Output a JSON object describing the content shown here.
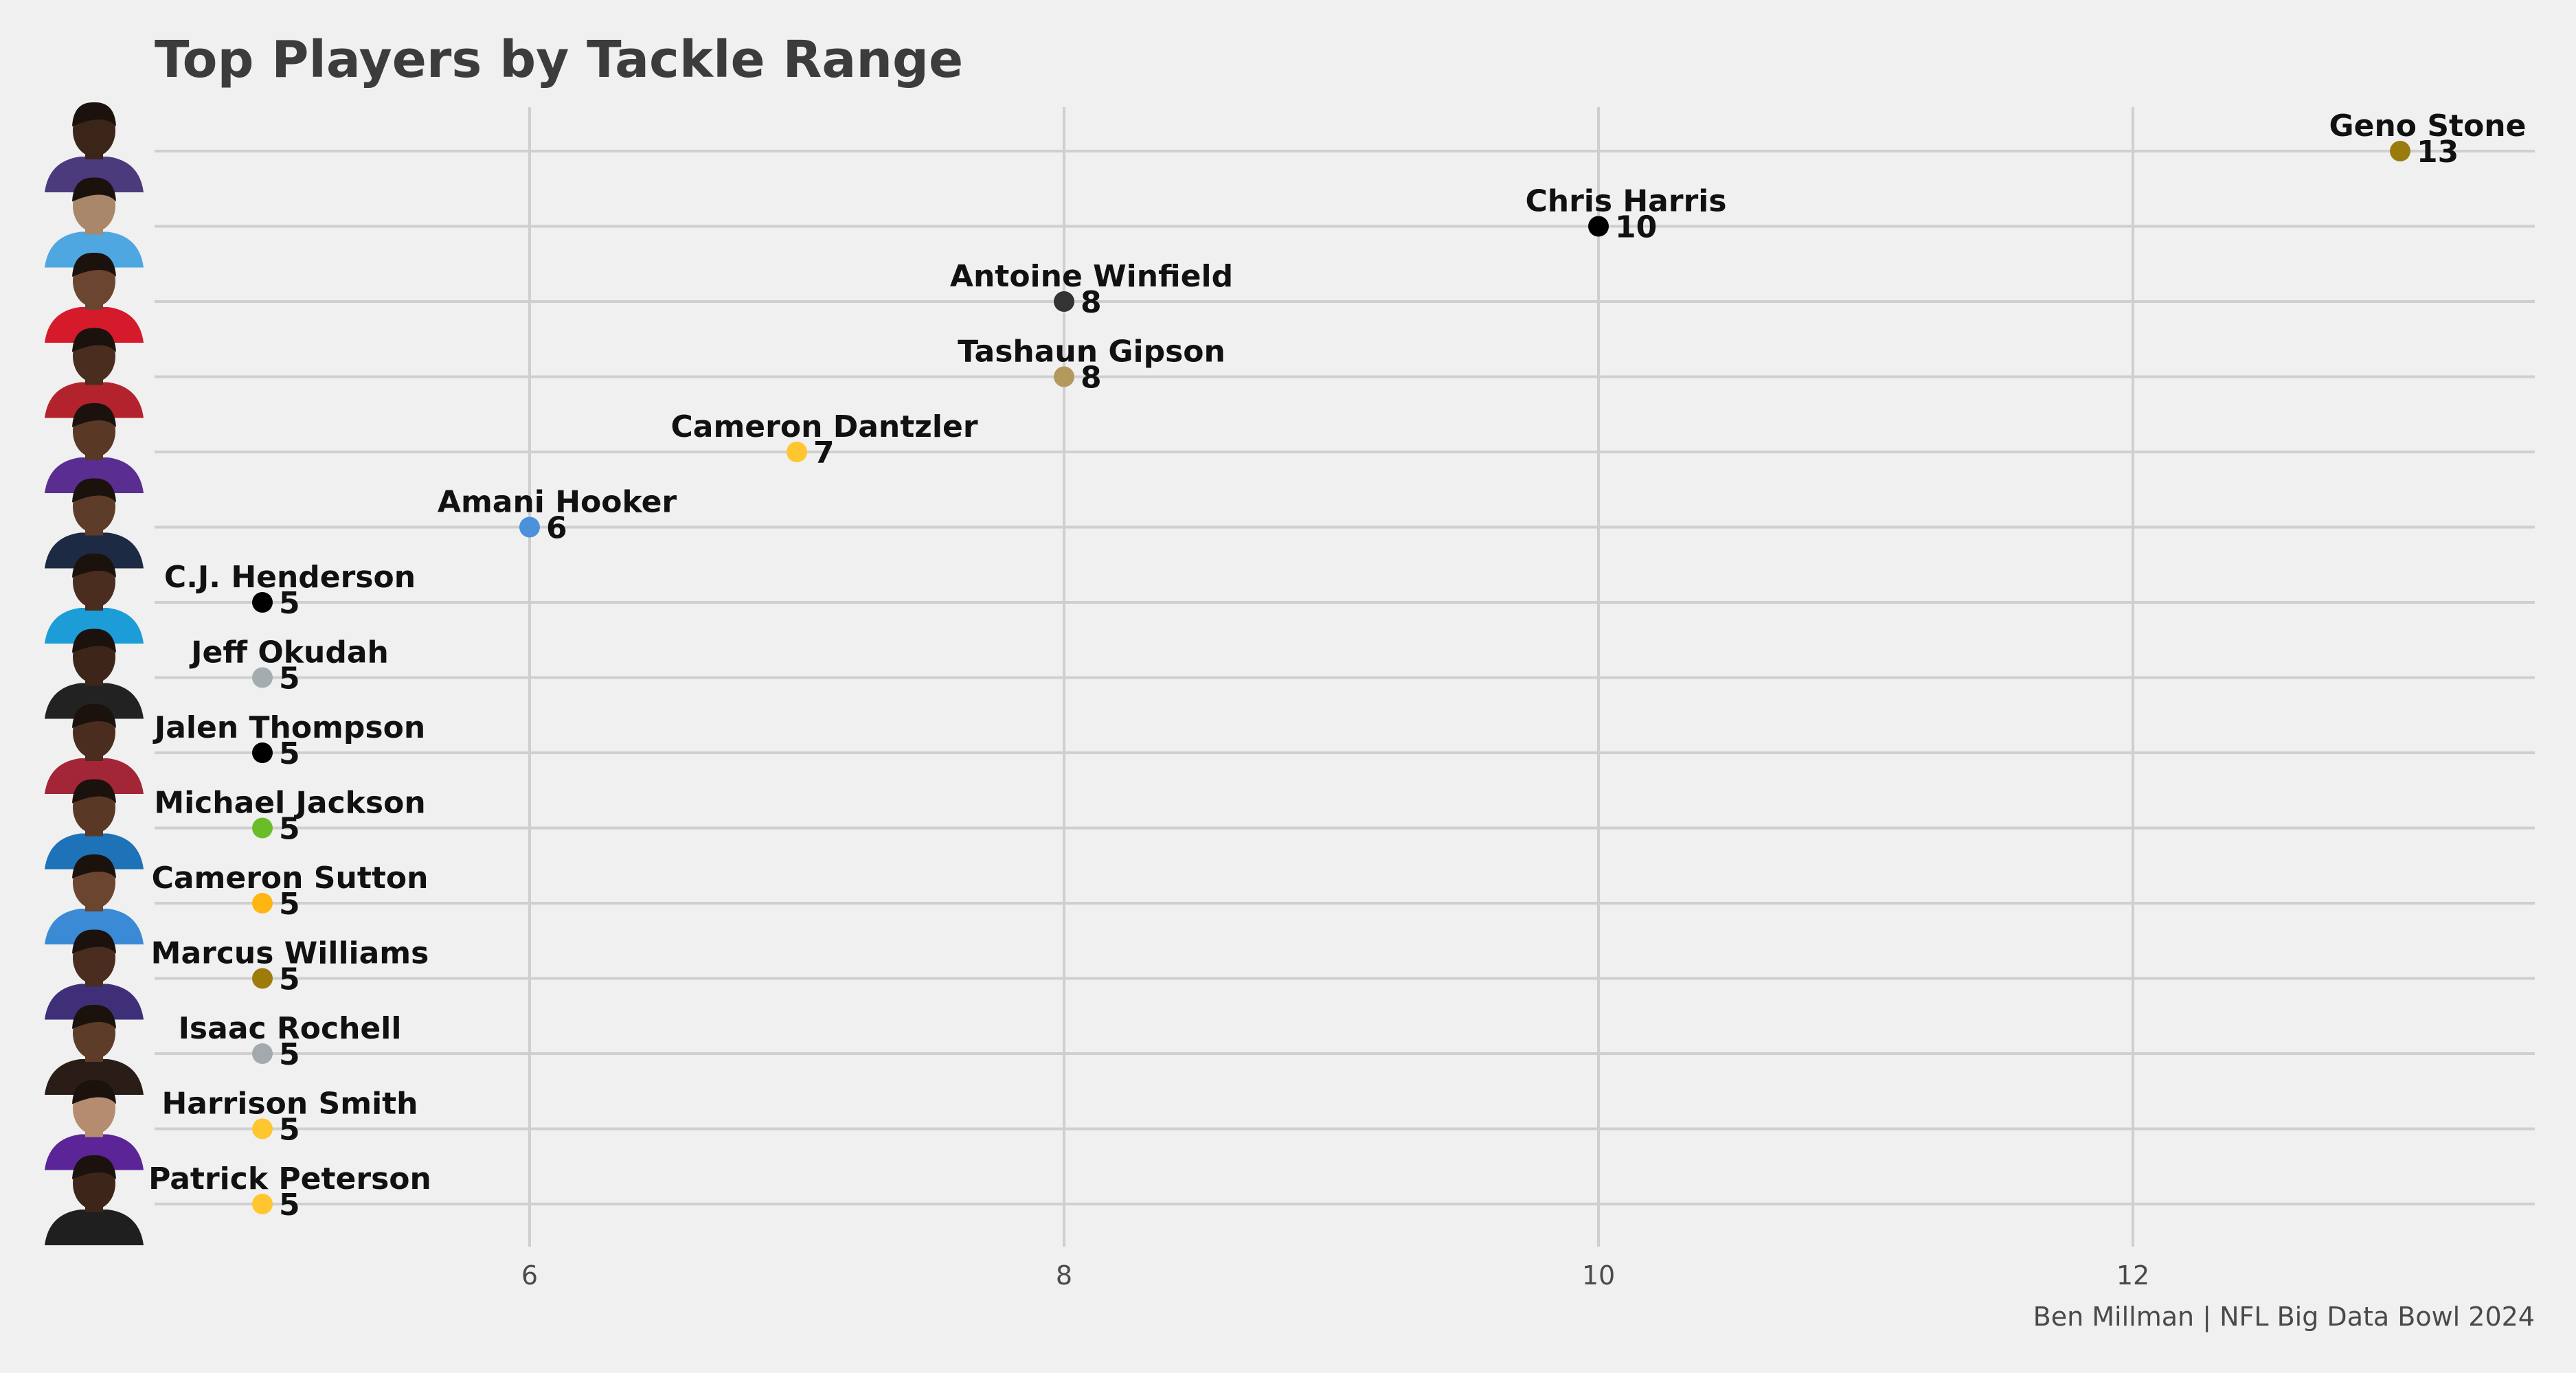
{
  "chart_data": {
    "type": "scatter",
    "title": "Top Players by Tackle Range",
    "caption": "Ben Millman | NFL Big Data Bowl 2024",
    "xlabel": "",
    "ylabel": "",
    "xlim": [
      4.6,
      13.5
    ],
    "xticks": [
      6,
      8,
      10,
      12
    ],
    "grid": true,
    "players": [
      {
        "name": "Geno Stone",
        "value": 13,
        "color": "#9a7b0e",
        "jersey": "#4b3a7c",
        "skin": "#3a2518"
      },
      {
        "name": "Chris Harris",
        "value": 10,
        "color": "#000000",
        "jersey": "#4ea7e0",
        "skin": "#a8876a"
      },
      {
        "name": "Antoine Winfield",
        "value": 8,
        "color": "#333333",
        "jersey": "#d51a2b",
        "skin": "#6b4530"
      },
      {
        "name": "Tashaun Gipson",
        "value": 8,
        "color": "#b3995d",
        "jersey": "#b3232d",
        "skin": "#4a2d1e"
      },
      {
        "name": "Cameron Dantzler",
        "value": 7,
        "color": "#ffc62f",
        "jersey": "#5a2d91",
        "skin": "#5a3826"
      },
      {
        "name": "Amani Hooker",
        "value": 6,
        "color": "#4b92db",
        "jersey": "#1d2a44",
        "skin": "#5e3c2a"
      },
      {
        "name": "C.J. Henderson",
        "value": 5,
        "color": "#000000",
        "jersey": "#1d9dd8",
        "skin": "#4a2d1e"
      },
      {
        "name": "Jeff Okudah",
        "value": 5,
        "color": "#a5acaf",
        "jersey": "#222222",
        "skin": "#3d2619"
      },
      {
        "name": "Jalen Thompson",
        "value": 5,
        "color": "#000000",
        "jersey": "#a32638",
        "skin": "#4a2d1e"
      },
      {
        "name": "Michael Jackson",
        "value": 5,
        "color": "#69be28",
        "jersey": "#1e72b8",
        "skin": "#5a3826"
      },
      {
        "name": "Cameron Sutton",
        "value": 5,
        "color": "#ffb612",
        "jersey": "#3a8ad6",
        "skin": "#6b4530"
      },
      {
        "name": "Marcus Williams",
        "value": 5,
        "color": "#9e7c0c",
        "jersey": "#3f2f78",
        "skin": "#4a2d1e"
      },
      {
        "name": "Isaac Rochell",
        "value": 5,
        "color": "#a2aaad",
        "jersey": "#2a1d17",
        "skin": "#5e3c2a"
      },
      {
        "name": "Harrison Smith",
        "value": 5,
        "color": "#ffc62f",
        "jersey": "#5b2597",
        "skin": "#b58c70"
      },
      {
        "name": "Patrick Peterson",
        "value": 5,
        "color": "#ffc62f",
        "jersey": "#1f1f1f",
        "skin": "#3d2619"
      }
    ]
  }
}
